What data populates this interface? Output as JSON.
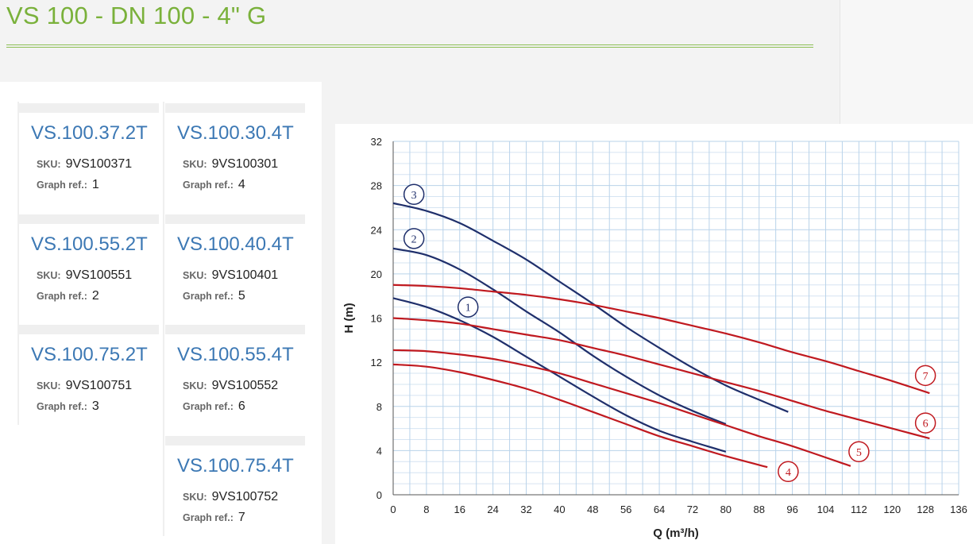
{
  "header": {
    "title": "VS 100 - DN 100 - 4\" G"
  },
  "labels": {
    "sku": "SKU:",
    "graph_ref": "Graph ref.:"
  },
  "products": [
    {
      "name": "VS.100.37.2T",
      "sku": "9VS100371",
      "graph_ref": "1"
    },
    {
      "name": "VS.100.30.4T",
      "sku": "9VS100301",
      "graph_ref": "4"
    },
    {
      "name": "VS.100.55.2T",
      "sku": "9VS100551",
      "graph_ref": "2"
    },
    {
      "name": "VS.100.40.4T",
      "sku": "9VS100401",
      "graph_ref": "5"
    },
    {
      "name": "VS.100.75.2T",
      "sku": "9VS100751",
      "graph_ref": "3"
    },
    {
      "name": "VS.100.55.4T",
      "sku": "9VS100552",
      "graph_ref": "6"
    },
    {
      "name": "VS.100.75.4T",
      "sku": "9VS100752",
      "graph_ref": "7"
    }
  ],
  "colors": {
    "title_green": "#7ab13b",
    "link_blue": "#3c78b4",
    "curve_navy": "#1f2f6b",
    "curve_red": "#c0191f",
    "grid": "#b9d3ea"
  },
  "chart_data": {
    "type": "line",
    "xlabel": "Q (m³/h)",
    "ylabel": "H (m)",
    "xlim": [
      0,
      136
    ],
    "ylim": [
      0,
      32
    ],
    "x_ticks": [
      0,
      8,
      16,
      24,
      32,
      40,
      48,
      56,
      64,
      72,
      80,
      88,
      96,
      104,
      112,
      120,
      128,
      136
    ],
    "y_ticks": [
      0,
      4,
      8,
      12,
      16,
      20,
      24,
      28,
      32
    ],
    "grid": true,
    "series": [
      {
        "name": "1",
        "color": "#1f2f6b",
        "x": [
          0,
          8,
          16,
          24,
          32,
          40,
          48,
          56,
          64,
          72,
          80
        ],
        "y": [
          17.8,
          17.0,
          15.8,
          14.3,
          12.5,
          10.7,
          8.9,
          7.2,
          5.8,
          4.8,
          3.9
        ],
        "label_at": [
          18,
          17
        ]
      },
      {
        "name": "2",
        "color": "#1f2f6b",
        "x": [
          0,
          8,
          16,
          24,
          32,
          40,
          48,
          56,
          64,
          72,
          80
        ],
        "y": [
          22.3,
          21.7,
          20.4,
          18.6,
          16.6,
          14.7,
          12.6,
          10.7,
          9.0,
          7.6,
          6.4
        ],
        "label_at": [
          5,
          23.2
        ]
      },
      {
        "name": "3",
        "color": "#1f2f6b",
        "x": [
          0,
          8,
          16,
          24,
          32,
          40,
          48,
          56,
          64,
          72,
          80,
          88,
          95
        ],
        "y": [
          26.4,
          25.7,
          24.6,
          23.0,
          21.3,
          19.3,
          17.3,
          15.2,
          13.3,
          11.5,
          9.9,
          8.6,
          7.5
        ],
        "label_at": [
          5,
          27.2
        ]
      },
      {
        "name": "4",
        "color": "#c0191f",
        "x": [
          0,
          8,
          16,
          24,
          32,
          40,
          48,
          56,
          64,
          72,
          80,
          90
        ],
        "y": [
          11.8,
          11.6,
          11.1,
          10.4,
          9.6,
          8.6,
          7.5,
          6.4,
          5.3,
          4.4,
          3.5,
          2.5
        ],
        "label_at": [
          95,
          2.1
        ]
      },
      {
        "name": "5",
        "color": "#c0191f",
        "x": [
          0,
          8,
          16,
          24,
          32,
          40,
          48,
          56,
          64,
          72,
          80,
          88,
          96,
          110
        ],
        "y": [
          13.1,
          13.0,
          12.7,
          12.3,
          11.7,
          11.0,
          10.1,
          9.2,
          8.3,
          7.3,
          6.3,
          5.3,
          4.4,
          2.6
        ],
        "label_at": [
          112,
          3.9
        ]
      },
      {
        "name": "6",
        "color": "#c0191f",
        "x": [
          0,
          8,
          16,
          24,
          32,
          40,
          48,
          56,
          64,
          72,
          80,
          88,
          96,
          104,
          112,
          120,
          129
        ],
        "y": [
          16.0,
          15.8,
          15.5,
          15.0,
          14.5,
          14.0,
          13.3,
          12.6,
          11.8,
          11.0,
          10.2,
          9.4,
          8.5,
          7.6,
          6.8,
          6.0,
          5.1
        ],
        "label_at": [
          128,
          6.5
        ]
      },
      {
        "name": "7",
        "color": "#c0191f",
        "x": [
          0,
          8,
          16,
          24,
          32,
          40,
          48,
          56,
          64,
          72,
          80,
          88,
          96,
          104,
          112,
          120,
          129
        ],
        "y": [
          19.0,
          18.9,
          18.7,
          18.4,
          18.1,
          17.7,
          17.2,
          16.6,
          16.0,
          15.3,
          14.6,
          13.8,
          12.9,
          12.1,
          11.2,
          10.3,
          9.2
        ],
        "label_at": [
          128,
          10.8
        ]
      }
    ]
  }
}
